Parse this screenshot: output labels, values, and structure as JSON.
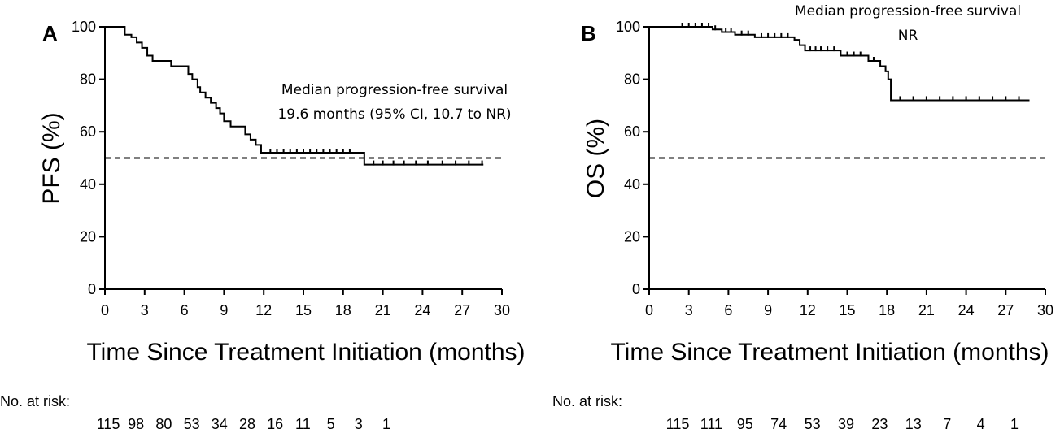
{
  "chart_data": [
    {
      "type": "line",
      "panel_label": "A",
      "ylabel": "PFS (%)",
      "xlabel": "Time Since Treatment Initiation (months)",
      "xlim": [
        0,
        30
      ],
      "ylim": [
        0,
        100
      ],
      "x_ticks": [
        0,
        3,
        6,
        9,
        12,
        15,
        18,
        21,
        24,
        27,
        30
      ],
      "y_ticks": [
        0,
        20,
        40,
        60,
        80,
        100
      ],
      "reference_line": {
        "y": 50,
        "style": "dashed"
      },
      "annotation_lines": [
        "Median progression-free survival",
        "19.6 months (95% CI, 10.7 to NR)"
      ],
      "series": [
        {
          "name": "PFS",
          "step_points": [
            [
              0,
              100
            ],
            [
              1.5,
              100
            ],
            [
              1.5,
              97
            ],
            [
              2,
              96
            ],
            [
              2.4,
              94
            ],
            [
              2.8,
              92
            ],
            [
              3.2,
              89
            ],
            [
              3.6,
              87
            ],
            [
              5,
              87
            ],
            [
              5,
              85
            ],
            [
              6.3,
              85
            ],
            [
              6.3,
              82
            ],
            [
              6.6,
              80
            ],
            [
              7,
              77
            ],
            [
              7.2,
              75
            ],
            [
              7.6,
              73
            ],
            [
              8,
              71
            ],
            [
              8.4,
              69
            ],
            [
              8.7,
              67
            ],
            [
              9,
              64
            ],
            [
              9.5,
              62
            ],
            [
              10.6,
              62
            ],
            [
              10.6,
              59
            ],
            [
              11,
              57
            ],
            [
              11.4,
              55
            ],
            [
              11.8,
              52
            ],
            [
              19.6,
              52
            ],
            [
              19.6,
              47.5
            ],
            [
              28.6,
              47.5
            ]
          ],
          "censor_x": [
            12.5,
            13,
            13.5,
            14,
            14.5,
            15,
            15.5,
            16,
            16.5,
            17,
            17.5,
            18,
            18.5,
            20.3,
            21,
            21.8,
            22.6,
            23.5,
            24.4,
            25.5,
            26.5,
            27.5,
            28.5
          ]
        }
      ],
      "at_risk": {
        "title": "No. at risk:",
        "values": [
          "115",
          "98",
          "80",
          "53",
          "34",
          "28",
          "16",
          "11",
          "5",
          "3",
          "1"
        ]
      }
    },
    {
      "type": "line",
      "panel_label": "B",
      "ylabel": "OS (%)",
      "xlabel": "Time Since Treatment Initiation (months)",
      "xlim": [
        0,
        30
      ],
      "ylim": [
        0,
        100
      ],
      "x_ticks": [
        0,
        3,
        6,
        9,
        12,
        15,
        18,
        21,
        24,
        27,
        30
      ],
      "y_ticks": [
        0,
        20,
        40,
        60,
        80,
        100
      ],
      "reference_line": {
        "y": 50,
        "style": "dashed"
      },
      "annotation_lines": [
        "Median progression-free survival",
        "NR"
      ],
      "series": [
        {
          "name": "OS",
          "step_points": [
            [
              0,
              100
            ],
            [
              4.8,
              100
            ],
            [
              4.8,
              99
            ],
            [
              5.5,
              98
            ],
            [
              6.5,
              97
            ],
            [
              8,
              96
            ],
            [
              11,
              95
            ],
            [
              11.4,
              93
            ],
            [
              11.8,
              91
            ],
            [
              14.5,
              91
            ],
            [
              14.5,
              89
            ],
            [
              16.6,
              89
            ],
            [
              16.6,
              87
            ],
            [
              17.5,
              87
            ],
            [
              17.5,
              85
            ],
            [
              17.9,
              83
            ],
            [
              18.1,
              80
            ],
            [
              18.3,
              72
            ],
            [
              28.8,
              72
            ]
          ],
          "censor_x": [
            2.5,
            3,
            3.5,
            4,
            4.5,
            5,
            5.8,
            6.2,
            7,
            7.5,
            8.5,
            9,
            9.5,
            10,
            10.5,
            12.2,
            12.6,
            13,
            13.5,
            14,
            15,
            15.5,
            16,
            17,
            19,
            20,
            21,
            22,
            23,
            24,
            25,
            26,
            27,
            28
          ]
        }
      ],
      "at_risk": {
        "title": "No. at risk:",
        "values": [
          "115",
          "111",
          "95",
          "74",
          "53",
          "39",
          "23",
          "13",
          "7",
          "4",
          "1"
        ]
      }
    }
  ]
}
